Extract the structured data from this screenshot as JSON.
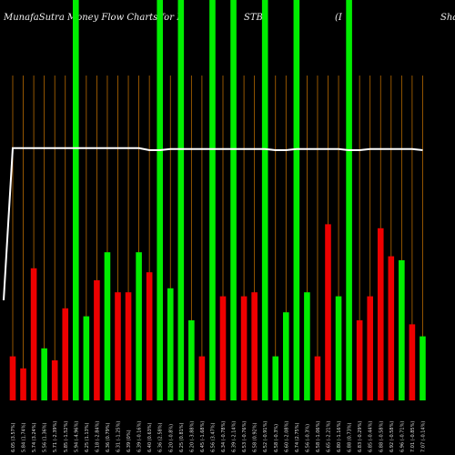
{
  "chart_data": {
    "type": "bar",
    "title_parts": [
      "MunafaSutra  Money Flow  Charts for I",
      "STB",
      "(I",
      "Shar"
    ],
    "ylim": [
      0,
      100
    ],
    "colors": {
      "up": "#00ee00",
      "down": "#ee0000",
      "grid": "#b86a00",
      "line": "#ffffff",
      "bg": "#000000"
    },
    "bars": [
      {
        "label": "6.05 (3.57%)",
        "value": 11,
        "color": "red"
      },
      {
        "label": "5.84 (1.74%)",
        "value": 8,
        "color": "red"
      },
      {
        "label": "5.74 (3.24%)",
        "value": 33,
        "color": "red"
      },
      {
        "label": "5.56 (1.36%)",
        "value": 13,
        "color": "green"
      },
      {
        "label": "5.71 (-2.39%)",
        "value": 10,
        "color": "red"
      },
      {
        "label": "5.85 (-1.52%)",
        "value": 23,
        "color": "red"
      },
      {
        "label": "5.94 (-4.96%)",
        "value": 100,
        "color": "green"
      },
      {
        "label": "6.25 (1.13%)",
        "value": 21,
        "color": "green"
      },
      {
        "label": "6.18 (-2.84%)",
        "value": 30,
        "color": "red"
      },
      {
        "label": "6.36 (0.79%)",
        "value": 37,
        "color": "green"
      },
      {
        "label": "6.31 (-1.25%)",
        "value": 27,
        "color": "red"
      },
      {
        "label": "6.39 (0%)",
        "value": 27,
        "color": "red"
      },
      {
        "label": "6.39 (-0.16%)",
        "value": 37,
        "color": "green"
      },
      {
        "label": "6.40 (0.63%)",
        "value": 32,
        "color": "red"
      },
      {
        "label": "6.36 (2.58%)",
        "value": 100,
        "color": "green"
      },
      {
        "label": "6.20 (-0.8%)",
        "value": 28,
        "color": "green"
      },
      {
        "label": "6.25 (0.81%)",
        "value": 100,
        "color": "green"
      },
      {
        "label": "6.20 (-3.88%)",
        "value": 20,
        "color": "green"
      },
      {
        "label": "6.45 (-1.68%)",
        "value": 11,
        "color": "red"
      },
      {
        "label": "6.56 (3.47%)",
        "value": 100,
        "color": "green"
      },
      {
        "label": "6.34 (-0.78%)",
        "value": 26,
        "color": "red"
      },
      {
        "label": "6.39 (-2.14%)",
        "value": 100,
        "color": "green"
      },
      {
        "label": "6.53 (-0.76%)",
        "value": 26,
        "color": "red"
      },
      {
        "label": "6.58 (0.92%)",
        "value": 27,
        "color": "red"
      },
      {
        "label": "6.52 (-0.91%)",
        "value": 100,
        "color": "green"
      },
      {
        "label": "6.58 (-0.3%)",
        "value": 11,
        "color": "green"
      },
      {
        "label": "6.60 (-2.08%)",
        "value": 22,
        "color": "green"
      },
      {
        "label": "6.74 (2.75%)",
        "value": 100,
        "color": "green"
      },
      {
        "label": "6.56 (-0.3%)",
        "value": 27,
        "color": "green"
      },
      {
        "label": "6.58 (-1.06%)",
        "value": 11,
        "color": "red"
      },
      {
        "label": "6.65 (-2.21%)",
        "value": 44,
        "color": "red"
      },
      {
        "label": "6.80 (-1.16%)",
        "value": 26,
        "color": "green"
      },
      {
        "label": "6.88 (0.73%)",
        "value": 100,
        "color": "green"
      },
      {
        "label": "6.83 (-0.29%)",
        "value": 20,
        "color": "red"
      },
      {
        "label": "6.85 (-0.44%)",
        "value": 26,
        "color": "red"
      },
      {
        "label": "6.88 (-0.58%)",
        "value": 43,
        "color": "red"
      },
      {
        "label": "6.92 (-0.58%)",
        "value": 36,
        "color": "red"
      },
      {
        "label": "6.96 (-0.71%)",
        "value": 35,
        "color": "green"
      },
      {
        "label": "7.01 (-0.85%)",
        "value": 19,
        "color": "red"
      },
      {
        "label": "7.07 (-0.14%)",
        "value": 16,
        "color": "green"
      }
    ],
    "line_values": [
      25,
      63,
      63,
      63,
      63,
      63,
      63,
      63,
      63,
      63,
      63,
      63,
      63,
      63,
      62.5,
      62.5,
      62.8,
      62.8,
      62.8,
      62.8,
      62.8,
      62.8,
      62.8,
      62.8,
      62.8,
      62.8,
      62.5,
      62.5,
      62.8,
      62.8,
      62.8,
      62.8,
      62.8,
      62.5,
      62.5,
      62.8,
      62.8,
      62.8,
      62.8,
      62.8,
      62.5
    ]
  }
}
